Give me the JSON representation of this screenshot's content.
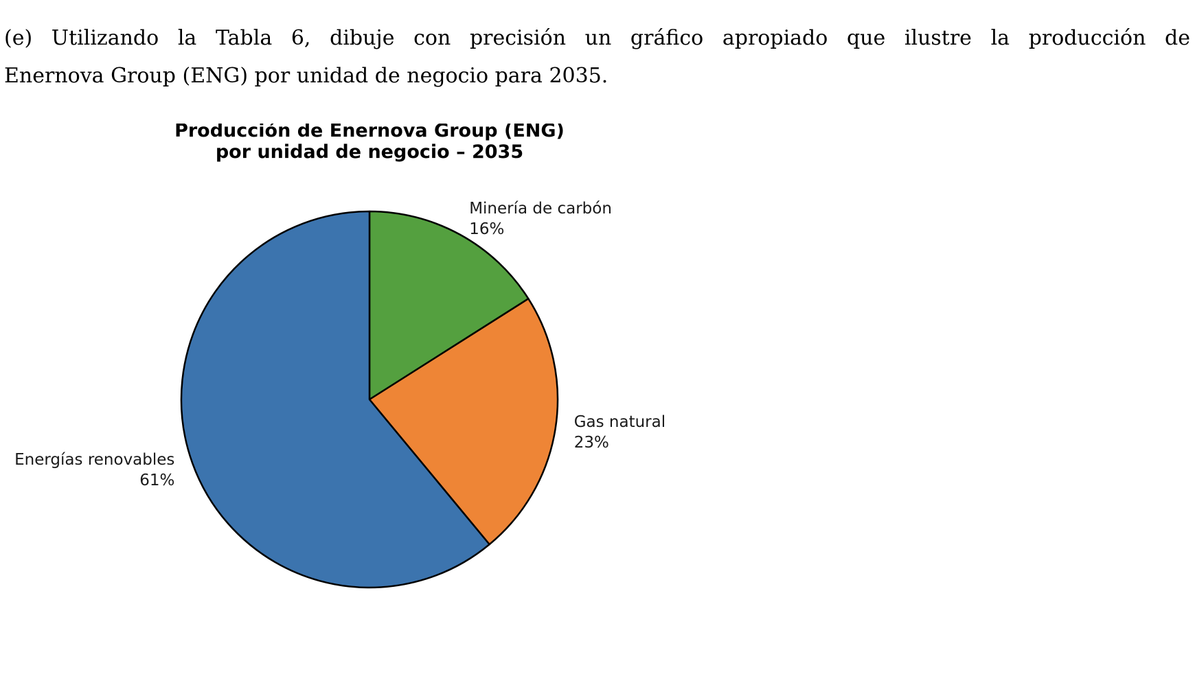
{
  "question": {
    "line1": "(e) Utilizando la Tabla 6, dibuje con precisión un gráfico apropiado que ilustre la producción de",
    "line2": "Enernova Group (ENG) por unidad de negocio para 2035."
  },
  "chart_data": {
    "type": "pie",
    "title": [
      "Producción de Enernova Group (ENG)",
      "por unidad de negocio – 2035"
    ],
    "start_angle": "12 o'clock",
    "direction": "clockwise",
    "slices": [
      {
        "label": "Minería de carbón",
        "value": 16,
        "display": "16%",
        "color": "#54a03f"
      },
      {
        "label": "Gas natural",
        "value": 23,
        "display": "23%",
        "color": "#ee8536"
      },
      {
        "label": "Energías renovables",
        "value": 61,
        "display": "61%",
        "color": "#3c74ae"
      }
    ]
  }
}
